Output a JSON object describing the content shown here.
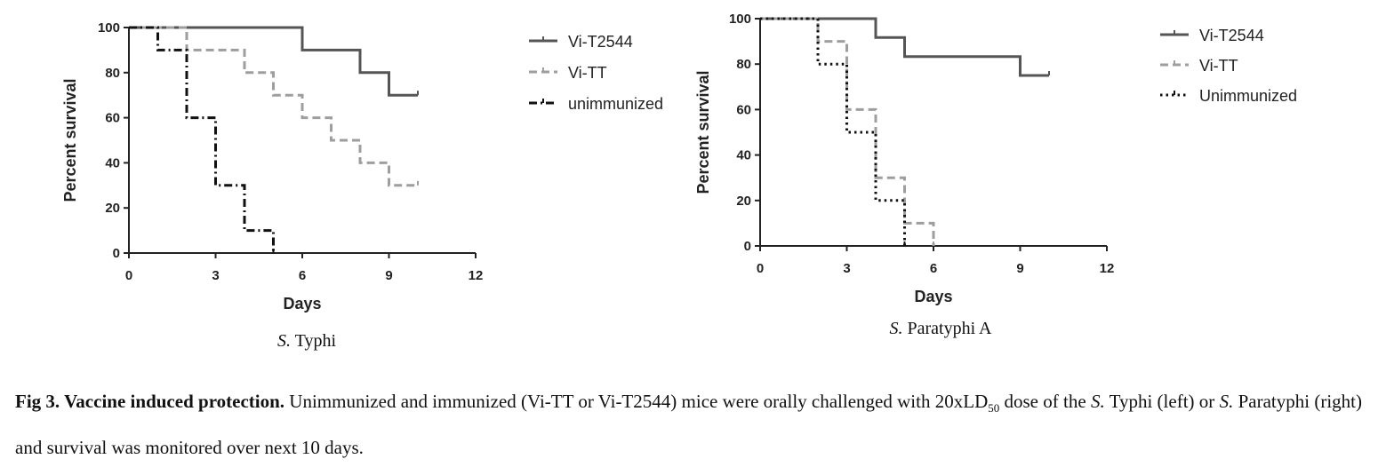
{
  "chart_data": [
    {
      "type": "line",
      "step": true,
      "subtitle_italic": "S.",
      "subtitle_rest": " Typhi",
      "xlabel": "Days",
      "ylabel": "Percent survival",
      "xlim": [
        0,
        12
      ],
      "ylim": [
        0,
        100
      ],
      "xticks": [
        "0",
        "3",
        "6",
        "9",
        "12"
      ],
      "yticks": [
        "0",
        "20",
        "40",
        "60",
        "80",
        "100"
      ],
      "legend_position": "right",
      "series": [
        {
          "name": "Vi-T2544",
          "color": "#555555",
          "dash": "solid",
          "x": [
            0,
            6,
            8,
            9,
            10
          ],
          "y": [
            100,
            90,
            80,
            70,
            70
          ]
        },
        {
          "name": "Vi-TT",
          "color": "#9e9e9e",
          "dash": "dashed",
          "x": [
            0,
            2,
            4,
            5,
            6,
            7,
            8,
            9,
            10
          ],
          "y": [
            100,
            90,
            80,
            70,
            60,
            50,
            40,
            30,
            30
          ]
        },
        {
          "name": "unimmunized",
          "color": "#111111",
          "dash": "dashdot",
          "x": [
            0,
            1,
            2,
            3,
            4,
            5
          ],
          "y": [
            100,
            90,
            60,
            30,
            10,
            0
          ]
        }
      ]
    },
    {
      "type": "line",
      "step": true,
      "subtitle_italic": "S.",
      "subtitle_rest": " Paratyphi A",
      "xlabel": "Days",
      "ylabel": "Percent survival",
      "xlim": [
        0,
        12
      ],
      "ylim": [
        0,
        100
      ],
      "xticks": [
        "0",
        "3",
        "6",
        "9",
        "12"
      ],
      "yticks": [
        "0",
        "20",
        "40",
        "60",
        "80",
        "100"
      ],
      "legend_position": "right",
      "series": [
        {
          "name": "Vi-T2544",
          "color": "#555555",
          "dash": "solid",
          "x": [
            0,
            4,
            5,
            9,
            10
          ],
          "y": [
            100,
            91.7,
            83.3,
            75,
            75
          ]
        },
        {
          "name": "Vi-TT",
          "color": "#9e9e9e",
          "dash": "dashed",
          "x": [
            0,
            2,
            3,
            4,
            5,
            6
          ],
          "y": [
            100,
            90,
            60,
            30,
            10,
            0
          ]
        },
        {
          "name": "Unimmunized",
          "color": "#111111",
          "dash": "dotted",
          "x": [
            0,
            2,
            3,
            4,
            5
          ],
          "y": [
            100,
            80,
            50,
            20,
            0
          ]
        }
      ]
    }
  ],
  "caption": {
    "label": "Fig 3. Vaccine induced protection.",
    "text_1": " Unimmunized and immunized (Vi-TT or Vi-T2544) mice were orally challenged with 20xLD",
    "subscript": "50",
    "text_2": " dose of the ",
    "italic_1": "S.",
    "text_3": " Typhi (left) or ",
    "italic_2": "S.",
    "text_4": " Paratyphi (right) and survival was monitored over next 10 days."
  }
}
